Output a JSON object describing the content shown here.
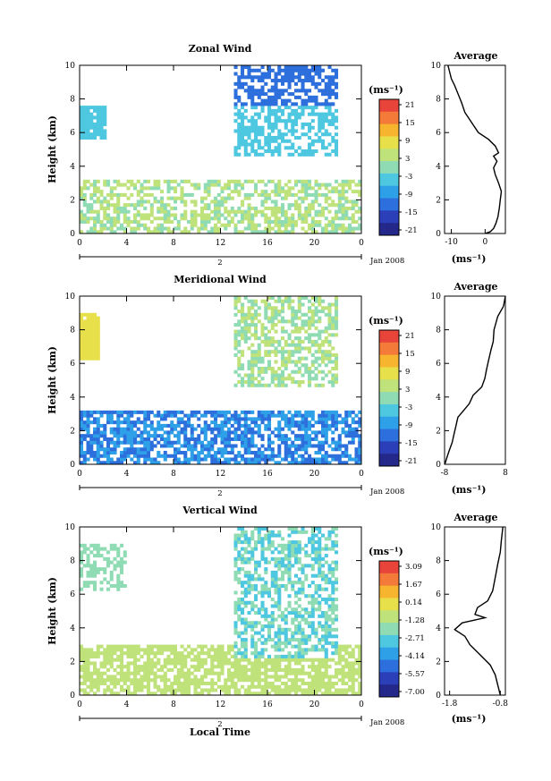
{
  "figure": {
    "time_axis_label": "Local Time"
  },
  "chart_data": [
    {
      "type": "heatmap",
      "title": "Zonal Wind",
      "ylabel": "Height (km)",
      "xlim": [
        0,
        24
      ],
      "ylim": [
        0,
        10
      ],
      "x_ticks": [
        "0",
        "4",
        "8",
        "12",
        "16",
        "20",
        "0"
      ],
      "y_ticks": [
        "0",
        "2",
        "4",
        "6",
        "8",
        "10"
      ],
      "day_label": "2",
      "date_label": "Jan 2008",
      "colorbar": {
        "unit": "(ms⁻¹)",
        "ticks": [
          "21",
          "15",
          "9",
          "3",
          "-3",
          "-9",
          "-15",
          "-21"
        ]
      },
      "profile": {
        "title": "Average",
        "xlabel": "(ms⁻¹)",
        "xlim": [
          -12,
          6
        ],
        "x_ticks": [
          "-10",
          "0"
        ],
        "y_ticks": [
          "0",
          "2",
          "4",
          "6",
          "8",
          "10"
        ],
        "points": [
          [
            -11,
            10
          ],
          [
            -10.5,
            9.6
          ],
          [
            -10,
            9.2
          ],
          [
            -9,
            8.8
          ],
          [
            -8,
            8.3
          ],
          [
            -7,
            7.8
          ],
          [
            -6,
            7.2
          ],
          [
            -4,
            6.6
          ],
          [
            -2,
            6.0
          ],
          [
            1,
            5.6
          ],
          [
            3,
            5.2
          ],
          [
            4,
            4.8
          ],
          [
            2.5,
            4.6
          ],
          [
            3.5,
            4.3
          ],
          [
            2.5,
            3.9
          ],
          [
            3,
            3.5
          ],
          [
            4,
            3.0
          ],
          [
            4.8,
            2.5
          ],
          [
            4.5,
            2.0
          ],
          [
            4.2,
            1.5
          ],
          [
            3.8,
            1.0
          ],
          [
            3.2,
            0.6
          ],
          [
            2.5,
            0.3
          ],
          [
            1.5,
            0.1
          ],
          [
            0,
            0
          ]
        ]
      }
    },
    {
      "type": "heatmap",
      "title": "Meridional Wind",
      "ylabel": "Height (km)",
      "xlim": [
        0,
        24
      ],
      "ylim": [
        0,
        10
      ],
      "x_ticks": [
        "0",
        "4",
        "8",
        "12",
        "16",
        "20",
        "0"
      ],
      "y_ticks": [
        "0",
        "2",
        "4",
        "6",
        "8",
        "10"
      ],
      "day_label": "2",
      "date_label": "Jan 2008",
      "colorbar": {
        "unit": "(ms⁻¹)",
        "ticks": [
          "21",
          "15",
          "9",
          "3",
          "-3",
          "-9",
          "-15",
          "-21"
        ]
      },
      "profile": {
        "title": "Average",
        "xlabel": "(ms⁻¹)",
        "xlim": [
          -8,
          8
        ],
        "x_ticks": [
          "-8",
          "8"
        ],
        "y_ticks": [
          "0",
          "2",
          "4",
          "6",
          "8",
          "10"
        ],
        "points": [
          [
            8,
            10
          ],
          [
            7.5,
            9.4
          ],
          [
            6,
            8.8
          ],
          [
            5,
            8.0
          ],
          [
            4.8,
            7.3
          ],
          [
            4.2,
            6.8
          ],
          [
            3.6,
            6.2
          ],
          [
            3.0,
            5.6
          ],
          [
            2.6,
            5.1
          ],
          [
            1.8,
            4.6
          ],
          [
            -0.5,
            4.1
          ],
          [
            -1.5,
            3.6
          ],
          [
            -3,
            3.2
          ],
          [
            -4.5,
            2.8
          ],
          [
            -5,
            2.3
          ],
          [
            -5.5,
            1.8
          ],
          [
            -6,
            1.3
          ],
          [
            -6.8,
            0.8
          ],
          [
            -7.4,
            0.4
          ],
          [
            -7.8,
            0.1
          ],
          [
            -8,
            0
          ]
        ]
      }
    },
    {
      "type": "heatmap",
      "title": "Vertical Wind",
      "ylabel": "Height (km)",
      "xlim": [
        0,
        24
      ],
      "ylim": [
        0,
        10
      ],
      "x_ticks": [
        "0",
        "4",
        "8",
        "12",
        "16",
        "20",
        "0"
      ],
      "y_ticks": [
        "0",
        "2",
        "4",
        "6",
        "8",
        "10"
      ],
      "day_label": "2",
      "date_label": "Jan 2008",
      "xlabel": "Local Time",
      "colorbar": {
        "unit": "(ms⁻¹)",
        "ticks": [
          "3.09",
          "1.67",
          "0.14",
          "-1.28",
          "-2.71",
          "-4.14",
          "-5.57",
          "-7.00"
        ]
      },
      "profile": {
        "title": "Average",
        "xlabel": "(ms⁻¹)",
        "xlim": [
          -1.9,
          -0.7
        ],
        "x_ticks": [
          "-1.8",
          "-0.8"
        ],
        "y_ticks": [
          "0",
          "2",
          "4",
          "6",
          "8",
          "10"
        ],
        "points": [
          [
            -0.75,
            10
          ],
          [
            -0.78,
            9.2
          ],
          [
            -0.8,
            8.5
          ],
          [
            -0.85,
            7.8
          ],
          [
            -0.9,
            7.0
          ],
          [
            -0.95,
            6.2
          ],
          [
            -1.05,
            5.6
          ],
          [
            -1.25,
            5.2
          ],
          [
            -1.3,
            4.8
          ],
          [
            -1.1,
            4.6
          ],
          [
            -1.55,
            4.3
          ],
          [
            -1.7,
            3.9
          ],
          [
            -1.5,
            3.5
          ],
          [
            -1.4,
            3.0
          ],
          [
            -1.2,
            2.4
          ],
          [
            -1.0,
            1.8
          ],
          [
            -0.9,
            1.2
          ],
          [
            -0.85,
            0.6
          ],
          [
            -0.8,
            0
          ]
        ]
      }
    }
  ]
}
